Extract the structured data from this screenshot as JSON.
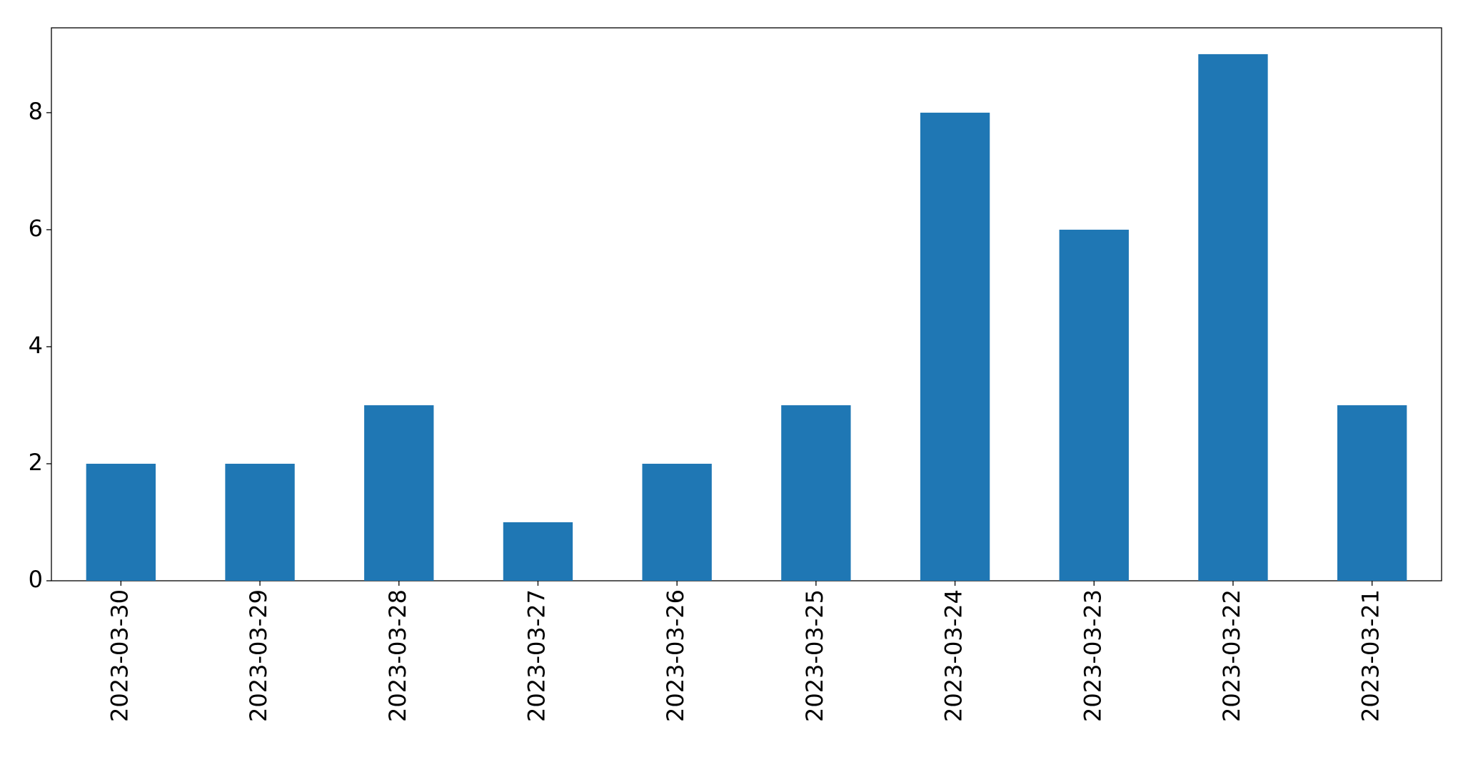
{
  "chart_data": {
    "type": "bar",
    "categories": [
      "2023-03-30",
      "2023-03-29",
      "2023-03-28",
      "2023-03-27",
      "2023-03-26",
      "2023-03-25",
      "2023-03-24",
      "2023-03-23",
      "2023-03-22",
      "2023-03-21"
    ],
    "values": [
      2,
      2,
      3,
      1,
      2,
      3,
      8,
      6,
      9,
      3
    ],
    "color": "#1f77b4",
    "ylim": [
      0,
      9.45
    ],
    "yticks": [
      0,
      2,
      4,
      6,
      8
    ],
    "grid": false
  }
}
